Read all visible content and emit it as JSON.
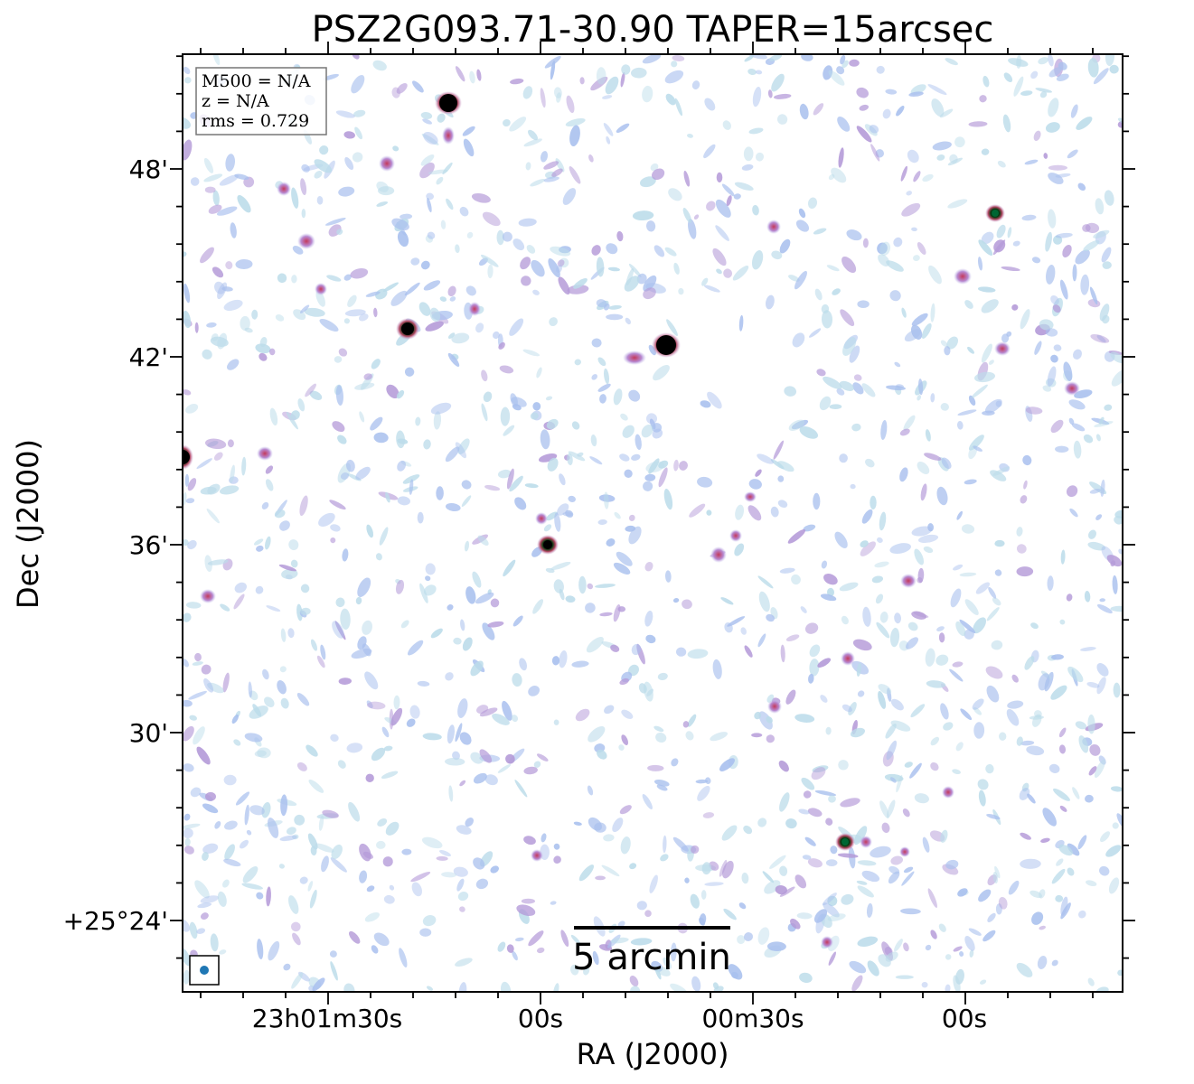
{
  "title": "PSZ2G093.71-30.90 TAPER=15arcsec",
  "xlabel": "RA (J2000)",
  "ylabel": "Dec (J2000)",
  "xticks": [
    "23h01m30s",
    "00s",
    "00m30s",
    "00s"
  ],
  "yticks": [
    "48'",
    "42'",
    "36'",
    "30'",
    "+25°24'"
  ],
  "info": {
    "m500": "M500 = N/A",
    "z": "z = N/A",
    "rms": "rms = 0.729"
  },
  "scalebar_label": "5 arcmin",
  "colors": {
    "noise_light": "#bcdcea",
    "noise_blue": "#a9c0ee",
    "noise_purple": "#b49ad8",
    "source_red": "#cf4a6a",
    "source_core": "#000000",
    "beam": "#1f77b4"
  }
}
